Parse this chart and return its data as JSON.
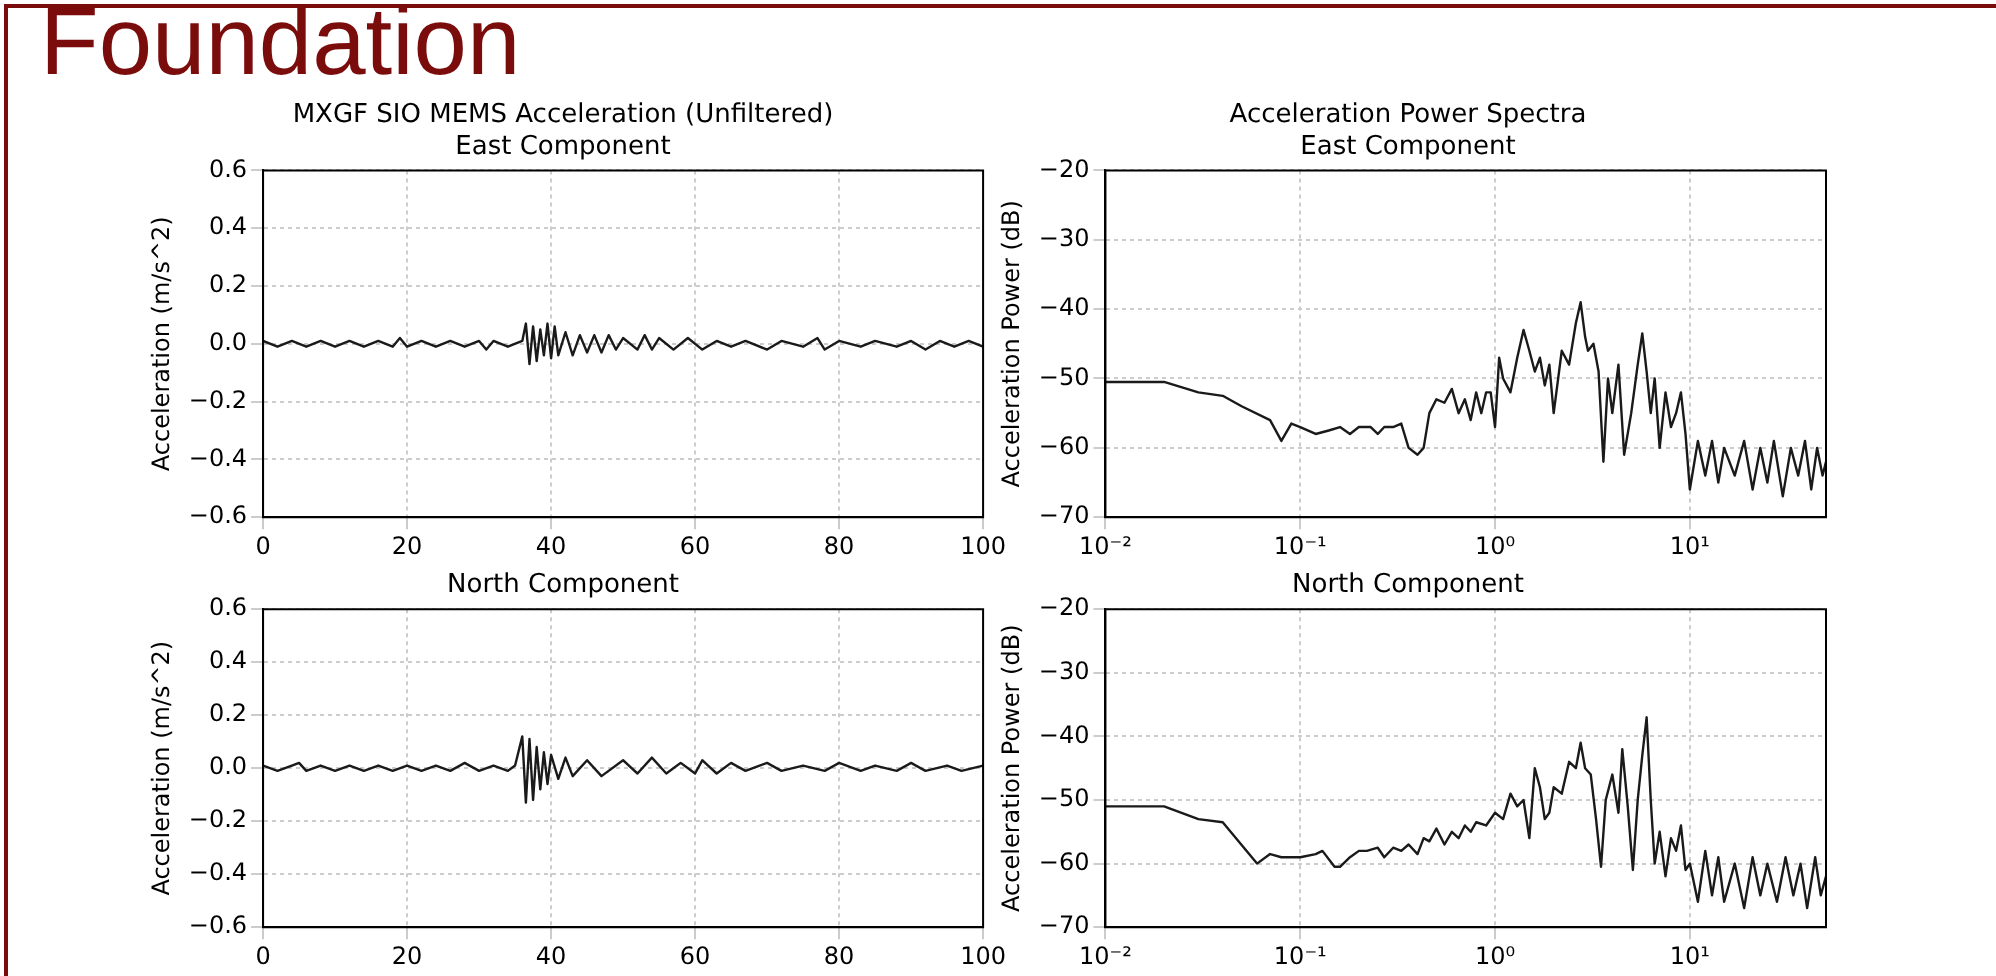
{
  "chart_data": [
    {
      "type": "line",
      "title": "MXGF SIO MEMS Acceleration (Unfiltered)",
      "subtitle": "East Component",
      "ylabel": "Acceleration (m/s^2)",
      "annotations": [
        "Foundation"
      ],
      "grid": true,
      "xlim": [
        0,
        100
      ],
      "xticks": [
        0,
        20,
        40,
        60,
        80,
        100
      ],
      "ylim": [
        -0.6,
        0.6
      ],
      "yticks": [
        {
          "value": -0.6,
          "label": "−0.6"
        },
        {
          "value": -0.4,
          "label": "−0.4"
        },
        {
          "value": -0.2,
          "label": "−0.2"
        },
        {
          "value": 0,
          "label": "0.0"
        },
        {
          "value": 0.2,
          "label": "0.2"
        },
        {
          "value": 0.4,
          "label": "0.4"
        },
        {
          "value": 0.6,
          "label": "0.6"
        }
      ],
      "series": [
        {
          "color": "#1a1a1a",
          "x": [
            0,
            2,
            4,
            6,
            8,
            10,
            12,
            14,
            16,
            18,
            19,
            20,
            22,
            24,
            26,
            28,
            30,
            31,
            32,
            34,
            36,
            36.5,
            37,
            37.5,
            38,
            38.5,
            39,
            39.5,
            40,
            40.5,
            41,
            42,
            43,
            44,
            45,
            46,
            47,
            48,
            49,
            50,
            52,
            53,
            54,
            55,
            57,
            59,
            61,
            63,
            65,
            67,
            70,
            72,
            75,
            77,
            78,
            80,
            83,
            85,
            88,
            90,
            92,
            94,
            96,
            98,
            100
          ],
          "values": [
            0.01,
            -0.01,
            0.01,
            -0.01,
            0.01,
            -0.01,
            0.01,
            -0.01,
            0.01,
            -0.01,
            0.02,
            -0.01,
            0.01,
            -0.01,
            0.01,
            -0.01,
            0.01,
            -0.02,
            0.01,
            -0.01,
            0.01,
            0.07,
            -0.07,
            0.06,
            -0.06,
            0.05,
            -0.04,
            0.07,
            -0.05,
            0.06,
            -0.04,
            0.04,
            -0.04,
            0.03,
            -0.03,
            0.03,
            -0.03,
            0.03,
            -0.02,
            0.02,
            -0.02,
            0.03,
            -0.02,
            0.02,
            -0.02,
            0.02,
            -0.02,
            0.01,
            -0.01,
            0.01,
            -0.02,
            0.01,
            -0.01,
            0.02,
            -0.02,
            0.01,
            -0.01,
            0.01,
            -0.01,
            0.01,
            -0.02,
            0.01,
            -0.01,
            0.01,
            -0.01
          ]
        }
      ]
    },
    {
      "type": "line",
      "title": "Acceleration Power Spectra",
      "subtitle": "East Component",
      "ylabel": "Acceleration Power (dB)",
      "grid": true,
      "log": "x",
      "xlim": [
        0.01,
        50
      ],
      "xticks": [
        {
          "value": 0.01,
          "label": "10⁻²"
        },
        {
          "value": 0.1,
          "label": "10⁻¹"
        },
        {
          "value": 1,
          "label": "10⁰"
        },
        {
          "value": 10,
          "label": "10¹"
        }
      ],
      "ylim": [
        -70,
        -20
      ],
      "yticks": [
        {
          "value": -70,
          "label": "−70"
        },
        {
          "value": -60,
          "label": "−60"
        },
        {
          "value": -50,
          "label": "−50"
        },
        {
          "value": -40,
          "label": "−40"
        },
        {
          "value": -30,
          "label": "−30"
        },
        {
          "value": -20,
          "label": "−20"
        }
      ],
      "series": [
        {
          "color": "#1a1a1a",
          "x": [
            0.01,
            0.02,
            0.03,
            0.04,
            0.05,
            0.07,
            0.08,
            0.09,
            0.1,
            0.12,
            0.14,
            0.16,
            0.18,
            0.2,
            0.23,
            0.25,
            0.27,
            0.3,
            0.33,
            0.36,
            0.4,
            0.43,
            0.46,
            0.5,
            0.55,
            0.6,
            0.65,
            0.7,
            0.75,
            0.8,
            0.85,
            0.9,
            0.95,
            1.0,
            1.05,
            1.1,
            1.2,
            1.3,
            1.4,
            1.5,
            1.6,
            1.7,
            1.8,
            1.9,
            2.0,
            2.2,
            2.4,
            2.6,
            2.75,
            2.9,
            3.0,
            3.2,
            3.4,
            3.6,
            3.8,
            4.0,
            4.3,
            4.6,
            5.0,
            5.4,
            5.7,
            6.0,
            6.3,
            6.6,
            7.0,
            7.5,
            8,
            8.5,
            9,
            9.5,
            10,
            11,
            12,
            13,
            14,
            15,
            17,
            19,
            21,
            23,
            25,
            27,
            30,
            33,
            36,
            39,
            42,
            45,
            48,
            50
          ],
          "values": [
            -50.5,
            -50.5,
            -52,
            -52.5,
            -54,
            -56,
            -59,
            -56.5,
            -57,
            -58,
            -57.5,
            -57,
            -58,
            -57,
            -57,
            -58,
            -57,
            -57,
            -56.5,
            -60,
            -61,
            -60,
            -55,
            -53,
            -53.5,
            -51.5,
            -55,
            -53,
            -56,
            -52,
            -55,
            -52,
            -52,
            -57,
            -47,
            -50,
            -52,
            -47,
            -43,
            -46,
            -49,
            -47,
            -51,
            -48,
            -55,
            -46,
            -48,
            -42,
            -39,
            -44,
            -46,
            -45,
            -49,
            -62,
            -50,
            -55,
            -48,
            -61,
            -55,
            -48,
            -43.5,
            -49,
            -55,
            -50,
            -60,
            -52,
            -57,
            -55,
            -52,
            -58,
            -66,
            -59,
            -64,
            -59,
            -65,
            -60,
            -64,
            -59,
            -66,
            -60,
            -65,
            -59,
            -67,
            -60,
            -64,
            -59,
            -66,
            -60,
            -64,
            -62
          ]
        }
      ]
    },
    {
      "type": "line",
      "title": "North Component",
      "ylabel": "Acceleration (m/s^2)",
      "grid": true,
      "xlim": [
        0,
        100
      ],
      "xticks": [
        0,
        20,
        40,
        60,
        80,
        100
      ],
      "ylim": [
        -0.6,
        0.6
      ],
      "yticks": [
        {
          "value": -0.6,
          "label": "−0.6"
        },
        {
          "value": -0.4,
          "label": "−0.4"
        },
        {
          "value": -0.2,
          "label": "−0.2"
        },
        {
          "value": 0,
          "label": "0.0"
        },
        {
          "value": 0.2,
          "label": "0.2"
        },
        {
          "value": 0.4,
          "label": "0.4"
        },
        {
          "value": 0.6,
          "label": "0.6"
        }
      ],
      "series": [
        {
          "color": "#1a1a1a",
          "x": [
            0,
            2,
            4,
            5,
            6,
            8,
            10,
            12,
            14,
            16,
            18,
            20,
            22,
            24,
            26,
            28,
            30,
            32,
            34,
            35,
            36,
            36.5,
            37,
            37.5,
            38,
            38.5,
            39,
            39.5,
            40,
            41,
            42,
            43,
            45,
            47,
            50,
            52,
            54,
            56,
            58,
            60,
            61,
            63,
            65,
            67,
            70,
            72,
            75,
            78,
            80,
            83,
            85,
            88,
            90,
            92,
            95,
            97,
            100
          ],
          "values": [
            0.01,
            -0.01,
            0.01,
            0.02,
            -0.01,
            0.01,
            -0.01,
            0.01,
            -0.01,
            0.01,
            -0.01,
            0.01,
            -0.01,
            0.01,
            -0.01,
            0.02,
            -0.01,
            0.01,
            -0.01,
            0.01,
            0.12,
            -0.13,
            0.11,
            -0.12,
            0.08,
            -0.08,
            0.06,
            -0.06,
            0.05,
            -0.04,
            0.04,
            -0.03,
            0.03,
            -0.03,
            0.03,
            -0.02,
            0.04,
            -0.02,
            0.02,
            -0.02,
            0.03,
            -0.02,
            0.02,
            -0.01,
            0.02,
            -0.01,
            0.01,
            -0.01,
            0.02,
            -0.01,
            0.01,
            -0.01,
            0.02,
            -0.01,
            0.01,
            -0.01,
            0.01
          ]
        }
      ]
    },
    {
      "type": "line",
      "title": "North Component",
      "ylabel": "Acceleration Power (dB)",
      "grid": true,
      "log": "x",
      "xlim": [
        0.01,
        50
      ],
      "xticks": [
        {
          "value": 0.01,
          "label": "10⁻²"
        },
        {
          "value": 0.1,
          "label": "10⁻¹"
        },
        {
          "value": 1,
          "label": "10⁰"
        },
        {
          "value": 10,
          "label": "10¹"
        }
      ],
      "ylim": [
        -70,
        -20
      ],
      "yticks": [
        {
          "value": -70,
          "label": "−70"
        },
        {
          "value": -60,
          "label": "−60"
        },
        {
          "value": -50,
          "label": "−50"
        },
        {
          "value": -40,
          "label": "−40"
        },
        {
          "value": -30,
          "label": "−30"
        },
        {
          "value": -20,
          "label": "−20"
        }
      ],
      "series": [
        {
          "color": "#1a1a1a",
          "x": [
            0.01,
            0.02,
            0.03,
            0.04,
            0.06,
            0.07,
            0.08,
            0.1,
            0.12,
            0.13,
            0.15,
            0.16,
            0.18,
            0.2,
            0.22,
            0.25,
            0.27,
            0.3,
            0.33,
            0.36,
            0.4,
            0.43,
            0.46,
            0.5,
            0.55,
            0.6,
            0.65,
            0.7,
            0.75,
            0.8,
            0.9,
            1.0,
            1.1,
            1.2,
            1.3,
            1.4,
            1.5,
            1.6,
            1.7,
            1.8,
            1.9,
            2.0,
            2.2,
            2.4,
            2.6,
            2.75,
            2.9,
            3.1,
            3.3,
            3.5,
            3.7,
            4.0,
            4.3,
            4.5,
            4.8,
            5.1,
            5.4,
            5.7,
            6.0,
            6.3,
            6.6,
            7,
            7.5,
            8,
            8.5,
            9,
            9.5,
            10,
            11,
            12,
            13,
            14,
            15,
            17,
            19,
            21,
            23,
            25,
            28,
            31,
            34,
            37,
            40,
            44,
            47,
            50
          ],
          "values": [
            -51,
            -51,
            -53,
            -53.5,
            -60,
            -58.5,
            -59,
            -59,
            -58.5,
            -58,
            -60.5,
            -60.5,
            -59,
            -58,
            -58,
            -57.5,
            -59,
            -57.5,
            -58,
            -57,
            -58.5,
            -56,
            -56.5,
            -54.5,
            -57,
            -55,
            -56,
            -54,
            -55,
            -53.5,
            -54,
            -52,
            -53,
            -49,
            -51,
            -50,
            -56,
            -45,
            -48,
            -53,
            -52,
            -48,
            -49,
            -44,
            -45,
            -41,
            -45,
            -46,
            -53,
            -60.5,
            -50,
            -46,
            -52,
            -42,
            -51,
            -61,
            -50,
            -43,
            -37,
            -50,
            -60,
            -55,
            -62,
            -56,
            -58,
            -54,
            -61,
            -60,
            -66,
            -58,
            -65,
            -59,
            -66,
            -60,
            -67,
            -59,
            -65,
            -60,
            -66,
            -59,
            -65,
            -60,
            -67,
            -59,
            -65,
            -62
          ]
        }
      ]
    }
  ]
}
